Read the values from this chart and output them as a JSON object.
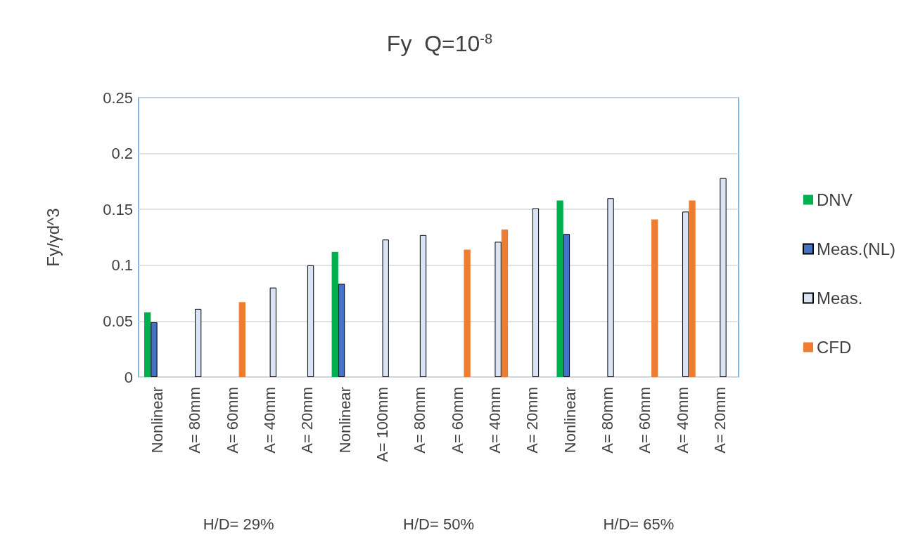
{
  "chart_data": {
    "type": "bar",
    "title": "Fy  Q=10$^{-8}$",
    "ylabel": "Fy/γd^3",
    "categories": [
      "Nonlinear",
      "A= 80mm",
      "A= 60mm",
      "A= 40mm",
      "A= 20mm",
      "Nonlinear",
      "A= 100mm",
      "A= 80mm",
      "A= 60mm",
      "A= 40mm",
      "A= 20mm",
      "Nonlinear",
      "A= 80mm",
      "A= 60mm",
      "A= 40mm",
      "A= 20mm"
    ],
    "series": [
      {
        "name": "DNV",
        "color": "#00b050",
        "values": [
          0.058,
          null,
          null,
          null,
          null,
          0.112,
          null,
          null,
          null,
          null,
          null,
          0.158,
          null,
          null,
          null,
          null
        ]
      },
      {
        "name": "Meas.(NL)",
        "color": "#4472c4",
        "values": [
          0.049,
          null,
          null,
          null,
          null,
          0.0835,
          null,
          null,
          null,
          null,
          null,
          0.128,
          null,
          null,
          null,
          null
        ]
      },
      {
        "name": "Meas.",
        "color": "#dae3f3",
        "values": [
          null,
          0.061,
          null,
          0.08,
          0.1,
          null,
          0.123,
          0.127,
          null,
          0.121,
          0.151,
          null,
          0.16,
          null,
          0.148,
          0.178
        ]
      },
      {
        "name": "CFD",
        "color": "#ed7d31",
        "values": [
          null,
          null,
          0.067,
          null,
          null,
          null,
          null,
          null,
          0.114,
          0.132,
          null,
          null,
          null,
          0.141,
          0.158,
          null
        ]
      }
    ],
    "annotations": [
      "H/D= 29%",
      "H/D= 50%",
      "H/D= 65%"
    ],
    "ylim": [
      0,
      0.25
    ],
    "yticks": [
      0,
      0.05,
      0.1,
      0.15,
      0.2,
      0.25
    ],
    "grid": "y",
    "legend": "right"
  }
}
